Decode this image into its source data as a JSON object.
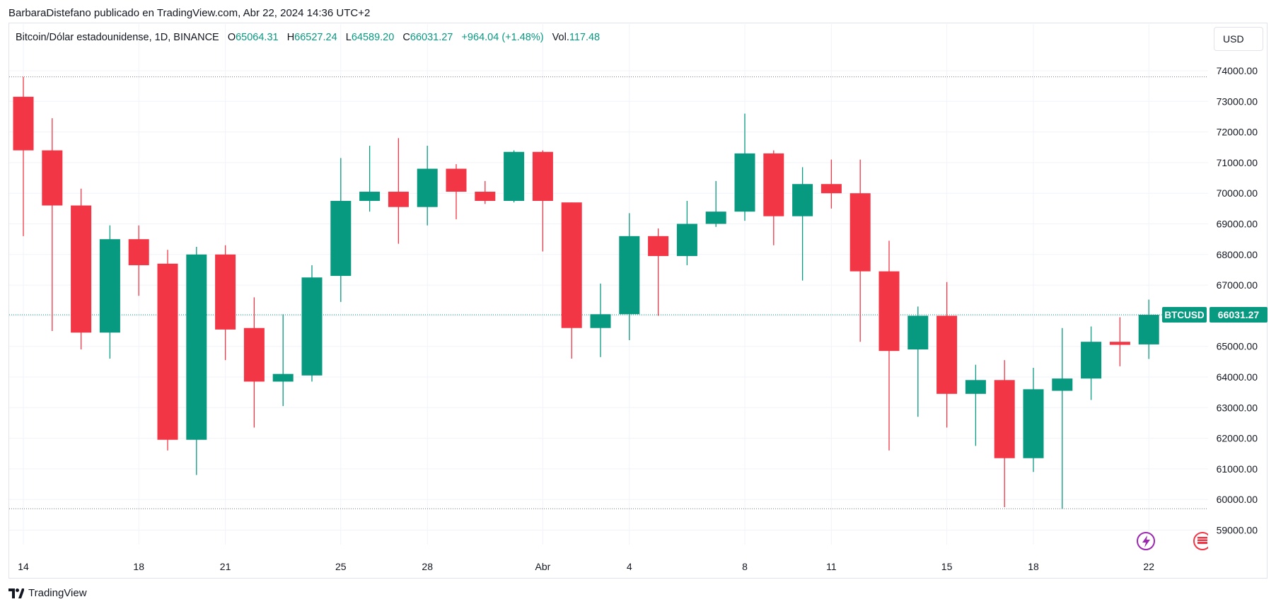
{
  "header": {
    "publish_line": "BarbaraDistefano publicado en TradingView.com, Abr 22, 2024 14:36 UTC+2"
  },
  "legend": {
    "symbol": "Bitcoin/Dólar estadounidense, 1D, BINANCE",
    "o_label": "O",
    "o_value": "65064.31",
    "h_label": "H",
    "h_value": "66527.24",
    "l_label": "L",
    "l_value": "64589.20",
    "c_label": "C",
    "c_value": "66031.27",
    "change": "+964.04 (+1.48%)",
    "vol_label": "Vol.",
    "vol_value": "117.48"
  },
  "currency_button": "USD",
  "footer": {
    "brand": "TradingView"
  },
  "colors": {
    "up": "#089981",
    "down": "#f23645",
    "grid": "#f0f3fa",
    "text": "#131722",
    "price_tag": "#089981",
    "lightning": "#9c27b0",
    "flag": "#f23645"
  },
  "icons": [
    "lightning-icon",
    "flag-icon",
    "tradingview-logo-icon"
  ],
  "chart_data": {
    "type": "candlestick",
    "symbol_tag": "BTCUSD",
    "last_price_label": "66031.27",
    "last_price": 66031.27,
    "high_ref_line": 73800,
    "low_ref_line": 59700,
    "ylim": [
      58400,
      75200
    ],
    "y_ticks": [
      74000,
      73000,
      72000,
      71000,
      70000,
      69000,
      68000,
      67000,
      66000,
      65000,
      64000,
      63000,
      62000,
      61000,
      60000,
      59000
    ],
    "y_tick_labels": [
      "74000.00",
      "73000.00",
      "72000.00",
      "71000.00",
      "70000.00",
      "69000.00",
      "68000.00",
      "67000.00",
      "66000.00",
      "65000.00",
      "64000.00",
      "63000.00",
      "62000.00",
      "61000.00",
      "60000.00",
      "59000.00"
    ],
    "x_ticks": [
      {
        "index": 0,
        "label": "14"
      },
      {
        "index": 4,
        "label": "18"
      },
      {
        "index": 7,
        "label": "21"
      },
      {
        "index": 11,
        "label": "25"
      },
      {
        "index": 14,
        "label": "28"
      },
      {
        "index": 18,
        "label": "Abr"
      },
      {
        "index": 21,
        "label": "4"
      },
      {
        "index": 25,
        "label": "8"
      },
      {
        "index": 28,
        "label": "11"
      },
      {
        "index": 32,
        "label": "15"
      },
      {
        "index": 35,
        "label": "18"
      },
      {
        "index": 39,
        "label": "22"
      }
    ],
    "candles": [
      {
        "o": 73150,
        "h": 73800,
        "l": 68600,
        "c": 71400
      },
      {
        "o": 71400,
        "h": 72450,
        "l": 65500,
        "c": 69600
      },
      {
        "o": 69600,
        "h": 70150,
        "l": 64900,
        "c": 65450
      },
      {
        "o": 65450,
        "h": 68950,
        "l": 64600,
        "c": 68500
      },
      {
        "o": 68500,
        "h": 68950,
        "l": 66650,
        "c": 67650
      },
      {
        "o": 67700,
        "h": 68150,
        "l": 61600,
        "c": 61950
      },
      {
        "o": 61950,
        "h": 68250,
        "l": 60800,
        "c": 68000
      },
      {
        "o": 68000,
        "h": 68300,
        "l": 64550,
        "c": 65550
      },
      {
        "o": 65600,
        "h": 66600,
        "l": 62350,
        "c": 63850
      },
      {
        "o": 63850,
        "h": 66050,
        "l": 63050,
        "c": 64100
      },
      {
        "o": 64050,
        "h": 67650,
        "l": 63850,
        "c": 67250
      },
      {
        "o": 67300,
        "h": 71150,
        "l": 66450,
        "c": 69750
      },
      {
        "o": 69750,
        "h": 71550,
        "l": 69400,
        "c": 70050
      },
      {
        "o": 70050,
        "h": 71800,
        "l": 68350,
        "c": 69550
      },
      {
        "o": 69550,
        "h": 71550,
        "l": 68950,
        "c": 70800
      },
      {
        "o": 70800,
        "h": 70950,
        "l": 69150,
        "c": 70050
      },
      {
        "o": 70050,
        "h": 70400,
        "l": 69650,
        "c": 69750
      },
      {
        "o": 69750,
        "h": 71400,
        "l": 69700,
        "c": 71350
      },
      {
        "o": 71350,
        "h": 71400,
        "l": 68100,
        "c": 69750
      },
      {
        "o": 69700,
        "h": 69700,
        "l": 64600,
        "c": 65600
      },
      {
        "o": 65600,
        "h": 67050,
        "l": 64650,
        "c": 66050
      },
      {
        "o": 66050,
        "h": 69350,
        "l": 65200,
        "c": 68600
      },
      {
        "o": 68600,
        "h": 68850,
        "l": 66000,
        "c": 67950
      },
      {
        "o": 67950,
        "h": 69750,
        "l": 67650,
        "c": 69000
      },
      {
        "o": 69000,
        "h": 70400,
        "l": 68900,
        "c": 69400
      },
      {
        "o": 69400,
        "h": 72600,
        "l": 69100,
        "c": 71300
      },
      {
        "o": 71300,
        "h": 71400,
        "l": 68300,
        "c": 69250
      },
      {
        "o": 69250,
        "h": 70850,
        "l": 67150,
        "c": 70300
      },
      {
        "o": 70300,
        "h": 71100,
        "l": 69500,
        "c": 70000
      },
      {
        "o": 70000,
        "h": 71100,
        "l": 65150,
        "c": 67450
      },
      {
        "o": 67450,
        "h": 68450,
        "l": 61600,
        "c": 64850
      },
      {
        "o": 64900,
        "h": 66300,
        "l": 62700,
        "c": 66000
      },
      {
        "o": 66000,
        "h": 67100,
        "l": 62350,
        "c": 63450
      },
      {
        "o": 63450,
        "h": 64400,
        "l": 61750,
        "c": 63900
      },
      {
        "o": 63900,
        "h": 64550,
        "l": 59750,
        "c": 61350
      },
      {
        "o": 61350,
        "h": 64300,
        "l": 60900,
        "c": 63600
      },
      {
        "o": 63550,
        "h": 65600,
        "l": 59700,
        "c": 63950
      },
      {
        "o": 63950,
        "h": 65650,
        "l": 63250,
        "c": 65150
      },
      {
        "o": 65150,
        "h": 65950,
        "l": 64350,
        "c": 65050
      },
      {
        "o": 65064.31,
        "h": 66527.24,
        "l": 64589.2,
        "c": 66031.27
      }
    ]
  }
}
